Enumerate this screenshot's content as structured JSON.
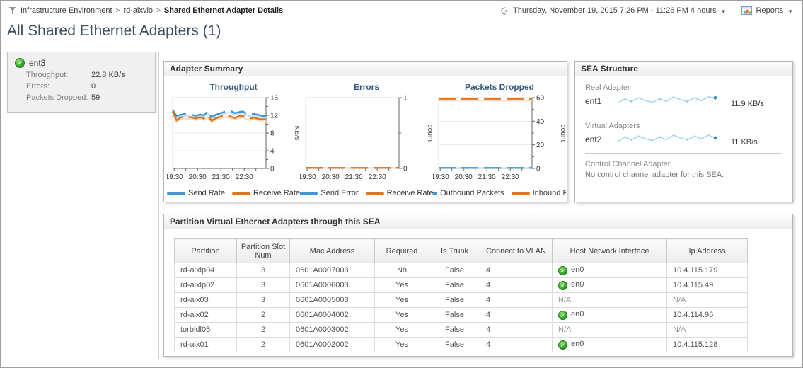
{
  "header": {
    "breadcrumb": {
      "separator": ">",
      "items": [
        {
          "label": "Infrastructure Environment"
        },
        {
          "label": "rd-aixvio"
        },
        {
          "label": "Shared Ethernet Adapter Details"
        }
      ]
    },
    "time_range": "Thursday, November 19, 2015 7:26 PM - 11:26 PM 4 hours",
    "reports_label": "Reports"
  },
  "page_title": "All Shared Ethernet Adapters (1)",
  "summary_box": {
    "name": "ent3",
    "status": "ok",
    "rows": [
      {
        "label": "Throughput:",
        "value": "22.8 KB/s"
      },
      {
        "label": "Errors:",
        "value": "0"
      },
      {
        "label": "Packets Dropped:",
        "value": "59"
      }
    ]
  },
  "adapter_summary_title": "Adapter Summary",
  "chart_data": [
    {
      "type": "line",
      "title": "Throughput",
      "ylabel": "KB/s",
      "ylim": [
        0,
        16
      ],
      "yticks": [
        0,
        4,
        8,
        12,
        16
      ],
      "x_time_labels": [
        "19:30",
        "20:30",
        "21:30",
        "22:30"
      ],
      "x_range_minutes": 240,
      "series": [
        {
          "name": "Send Rate",
          "color": "#3f97d3",
          "pale": "#c9e2f5",
          "values": [
            13.3,
            11.9,
            12.1,
            12.3,
            12.2,
            12.1,
            11.9,
            12.2,
            12.0,
            12.9,
            11.6,
            12.1,
            12.4,
            12.7,
            12.9,
            13.0,
            12.5,
            12.7,
            12.9,
            12.4,
            12.2,
            12.3,
            12.1,
            11.9,
            11.8
          ]
        },
        {
          "name": "Receive Rate",
          "color": "#e0761c",
          "pale": "#f5dcc0",
          "values": [
            12.9,
            10.9,
            11.5,
            11.7,
            11.6,
            11.5,
            11.3,
            11.6,
            11.3,
            12.0,
            10.8,
            11.3,
            11.6,
            11.9,
            12.0,
            11.7,
            11.4,
            11.8,
            11.9,
            11.5,
            11.3,
            11.5,
            11.2,
            11.1,
            11.1
          ]
        }
      ]
    },
    {
      "type": "line",
      "title": "Errors",
      "ylabel": "count",
      "ylim": [
        0,
        1
      ],
      "yticks": [
        0,
        1
      ],
      "x_time_labels": [
        "19:30",
        "20:30",
        "21:30",
        "22:30"
      ],
      "x_range_minutes": 240,
      "series": [
        {
          "name": "Send Error",
          "color": "#3f97d3",
          "pale": "#c9e2f5",
          "values": [
            0,
            0,
            0,
            0,
            0,
            0,
            0,
            0,
            0,
            0,
            0,
            0,
            0,
            0,
            0,
            0,
            0,
            0,
            0,
            0,
            0,
            0,
            0,
            0,
            0
          ]
        },
        {
          "name": "Receive Rate",
          "color": "#e0761c",
          "pale": "#f5dcc0",
          "values": [
            0,
            0,
            0,
            0,
            0,
            0,
            0,
            0,
            0,
            0,
            0,
            0,
            0,
            0,
            0,
            0,
            0,
            0,
            0,
            0,
            0,
            0,
            0,
            0,
            0
          ]
        }
      ]
    },
    {
      "type": "line",
      "title": "Packets Dropped",
      "ylabel": "count",
      "ylim": [
        0,
        60
      ],
      "yticks": [
        0,
        20,
        40,
        60
      ],
      "x_time_labels": [
        "19:30",
        "20:30",
        "21:30",
        "22:30"
      ],
      "x_range_minutes": 240,
      "series": [
        {
          "name": "Outbound Packets",
          "color": "#3f97d3",
          "pale": "#c9e2f5",
          "values": [
            0,
            0,
            0,
            0,
            0,
            0,
            0,
            0,
            0,
            0,
            0,
            0,
            0,
            0,
            0,
            0,
            0,
            0,
            0,
            0,
            0,
            0,
            0,
            0,
            0
          ]
        },
        {
          "name": "Inbound Pack",
          "color": "#e0761c",
          "pale": "#f5dcc0",
          "values": [
            59,
            59,
            59,
            59,
            59,
            59,
            59,
            59,
            59,
            59,
            59,
            59,
            59,
            59,
            59,
            59,
            59,
            59,
            59,
            59,
            59,
            59,
            59,
            59,
            59
          ]
        }
      ]
    }
  ],
  "sea_structure": {
    "title": "SEA Structure",
    "sections": [
      {
        "label": "Real Adapter",
        "adapter": "ent1",
        "value": "11.9 KB/s",
        "spark": [
          11.3,
          11.8,
          11.5,
          11.9,
          11.6,
          11.4,
          11.8,
          11.5,
          12.0,
          11.7,
          11.5,
          11.9,
          11.6,
          12.0,
          11.9
        ]
      },
      {
        "label": "Virtual Adapters",
        "adapter": "ent2",
        "value": "11 KB/s",
        "spark": [
          10.6,
          11.1,
          10.8,
          11.2,
          10.9,
          10.7,
          11.1,
          10.8,
          11.3,
          11.0,
          10.8,
          11.2,
          10.9,
          11.3,
          11.0
        ]
      },
      {
        "label": "Control Channel Adapter",
        "message": "No control channel adapter for this SEA."
      }
    ]
  },
  "partition_table": {
    "title": "Partition Virtual Ethernet Adapters through this SEA",
    "columns": [
      "Partition",
      "Partition Slot Num",
      "Mac Address",
      "Required",
      "Is Trunk",
      "Connect to VLAN",
      "Host Network Interface",
      "Ip Address"
    ],
    "rows": [
      {
        "partition": "rd-aixlp04",
        "slot": "3",
        "mac": "0601A0007003",
        "required": "No",
        "is_trunk": "False",
        "vlan": "4",
        "host_if": "en0",
        "host_if_status": "ok",
        "ip": "10.4.115.179"
      },
      {
        "partition": "rd-aixlp02",
        "slot": "3",
        "mac": "0601A0006003",
        "required": "Yes",
        "is_trunk": "False",
        "vlan": "4",
        "host_if": "en0",
        "host_if_status": "ok",
        "ip": "10.4.115.49"
      },
      {
        "partition": "rd-aix03",
        "slot": "3",
        "mac": "0601A0005003",
        "required": "Yes",
        "is_trunk": "False",
        "vlan": "4",
        "host_if": "N/A",
        "host_if_status": "na",
        "ip": "N/A"
      },
      {
        "partition": "rd-aix02",
        "slot": "2",
        "mac": "0601A0004002",
        "required": "Yes",
        "is_trunk": "False",
        "vlan": "4",
        "host_if": "en0",
        "host_if_status": "ok",
        "ip": "10.4.114.96"
      },
      {
        "partition": "torbldl05",
        "slot": "2",
        "mac": "0601A0003002",
        "required": "Yes",
        "is_trunk": "False",
        "vlan": "4",
        "host_if": "N/A",
        "host_if_status": "na",
        "ip": "N/A"
      },
      {
        "partition": "rd-aix01",
        "slot": "2",
        "mac": "0601A0002002",
        "required": "Yes",
        "is_trunk": "False",
        "vlan": "4",
        "host_if": "en0",
        "host_if_status": "ok",
        "ip": "10.4.115.128"
      }
    ]
  },
  "colors": {
    "accent_blue": "#3f97d3",
    "accent_orange": "#e0761c",
    "status_green": "#2f9e2f",
    "spark_blue": "#a9d2ee",
    "title_navy": "#34597a"
  }
}
